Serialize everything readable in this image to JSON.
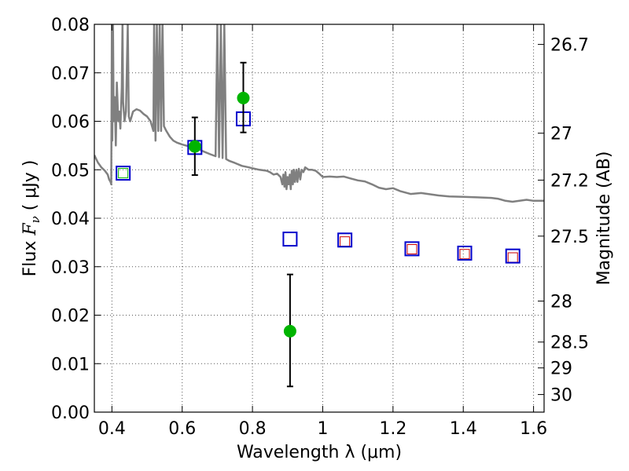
{
  "chart_data": {
    "type": "scatter",
    "title": "",
    "xlabel": "Wavelength  λ (μm)",
    "ylabel_prefix": "Flux ",
    "ylabel_symbol": "F",
    "ylabel_sub": "ν",
    "ylabel_suffix": "  ( μJy )",
    "y2label": "Magnitude (AB)",
    "xlim": [
      0.35,
      1.63
    ],
    "ylim": [
      0.0,
      0.08
    ],
    "grid": true,
    "x_ticks": [
      0.4,
      0.6,
      0.8,
      1.0,
      1.2,
      1.4,
      1.6
    ],
    "x_tick_labels": [
      "0.4",
      "0.6",
      "0.8",
      "1",
      "1.2",
      "1.4",
      "1.6"
    ],
    "y_ticks": [
      0.0,
      0.01,
      0.02,
      0.03,
      0.04,
      0.05,
      0.06,
      0.07,
      0.08
    ],
    "y_tick_labels": [
      "0.00",
      "0.01",
      "0.02",
      "0.03",
      "0.04",
      "0.05",
      "0.06",
      "0.07",
      "0.08"
    ],
    "y2_ticks": [
      26.7,
      27,
      27.2,
      27.5,
      28,
      28.5,
      29,
      30
    ],
    "y2_tick_labels": [
      "26.7",
      "27",
      "27.2",
      "27.5",
      "28",
      "28.5",
      "29",
      "30"
    ],
    "colors": {
      "spectrum": "#808080",
      "observed": "#00b400",
      "model_box": "#0000cc",
      "inner_green": "#00b400",
      "inner_red": "#cc0000"
    },
    "observed_points": [
      {
        "x": 0.636,
        "y": 0.0548,
        "err_lo": 0.0489,
        "err_hi": 0.0608
      },
      {
        "x": 0.774,
        "y": 0.0648,
        "err_lo": 0.0577,
        "err_hi": 0.0721
      },
      {
        "x": 0.907,
        "y": 0.0167,
        "err_lo": 0.0053,
        "err_hi": 0.0284
      }
    ],
    "model_points": [
      {
        "x": 0.432,
        "y": 0.0493
      },
      {
        "x": 0.636,
        "y": 0.0546
      },
      {
        "x": 0.774,
        "y": 0.0605
      },
      {
        "x": 0.907,
        "y": 0.0357
      },
      {
        "x": 1.063,
        "y": 0.0355
      },
      {
        "x": 1.254,
        "y": 0.0337
      },
      {
        "x": 1.404,
        "y": 0.0328
      },
      {
        "x": 1.541,
        "y": 0.0322
      }
    ],
    "inner_points": [
      {
        "x": 0.432,
        "y": 0.0493,
        "kind": "green"
      },
      {
        "x": 1.063,
        "y": 0.0352,
        "kind": "red"
      },
      {
        "x": 1.254,
        "y": 0.0336,
        "kind": "red"
      },
      {
        "x": 1.404,
        "y": 0.0326,
        "kind": "red"
      },
      {
        "x": 1.541,
        "y": 0.0319,
        "kind": "red"
      }
    ],
    "spectrum": [
      [
        0.35,
        0.053
      ],
      [
        0.36,
        0.0515
      ],
      [
        0.37,
        0.0505
      ],
      [
        0.38,
        0.0498
      ],
      [
        0.388,
        0.049
      ],
      [
        0.392,
        0.048
      ],
      [
        0.396,
        0.0475
      ],
      [
        0.398,
        0.047
      ],
      [
        0.4,
        0.08
      ],
      [
        0.401,
        0.056
      ],
      [
        0.403,
        0.08
      ],
      [
        0.405,
        0.06
      ],
      [
        0.408,
        0.065
      ],
      [
        0.411,
        0.055
      ],
      [
        0.414,
        0.068
      ],
      [
        0.418,
        0.06
      ],
      [
        0.421,
        0.062
      ],
      [
        0.424,
        0.0585
      ],
      [
        0.428,
        0.067
      ],
      [
        0.43,
        0.08
      ],
      [
        0.432,
        0.064
      ],
      [
        0.436,
        0.06
      ],
      [
        0.44,
        0.062
      ],
      [
        0.445,
        0.08
      ],
      [
        0.448,
        0.061
      ],
      [
        0.452,
        0.06
      ],
      [
        0.46,
        0.062
      ],
      [
        0.47,
        0.0625
      ],
      [
        0.48,
        0.0622
      ],
      [
        0.49,
        0.0615
      ],
      [
        0.5,
        0.061
      ],
      [
        0.51,
        0.06
      ],
      [
        0.518,
        0.058
      ],
      [
        0.52,
        0.08
      ],
      [
        0.524,
        0.056
      ],
      [
        0.528,
        0.08
      ],
      [
        0.532,
        0.058
      ],
      [
        0.536,
        0.08
      ],
      [
        0.54,
        0.058
      ],
      [
        0.544,
        0.08
      ],
      [
        0.548,
        0.059
      ],
      [
        0.555,
        0.058
      ],
      [
        0.565,
        0.0568
      ],
      [
        0.575,
        0.056
      ],
      [
        0.585,
        0.0556
      ],
      [
        0.6,
        0.0552
      ],
      [
        0.62,
        0.0548
      ],
      [
        0.64,
        0.0545
      ],
      [
        0.66,
        0.0538
      ],
      [
        0.68,
        0.0532
      ],
      [
        0.695,
        0.0528
      ],
      [
        0.7,
        0.08
      ],
      [
        0.705,
        0.0526
      ],
      [
        0.71,
        0.08
      ],
      [
        0.715,
        0.0524
      ],
      [
        0.72,
        0.08
      ],
      [
        0.725,
        0.0522
      ],
      [
        0.735,
        0.0518
      ],
      [
        0.75,
        0.0514
      ],
      [
        0.77,
        0.0508
      ],
      [
        0.79,
        0.0505
      ],
      [
        0.8,
        0.0503
      ],
      [
        0.82,
        0.05
      ],
      [
        0.84,
        0.0498
      ],
      [
        0.85,
        0.0495
      ],
      [
        0.86,
        0.049
      ],
      [
        0.87,
        0.0492
      ],
      [
        0.88,
        0.0485
      ],
      [
        0.885,
        0.047
      ],
      [
        0.888,
        0.049
      ],
      [
        0.891,
        0.0465
      ],
      [
        0.894,
        0.0495
      ],
      [
        0.897,
        0.046
      ],
      [
        0.9,
        0.0485
      ],
      [
        0.903,
        0.047
      ],
      [
        0.906,
        0.049
      ],
      [
        0.909,
        0.046
      ],
      [
        0.912,
        0.0498
      ],
      [
        0.915,
        0.047
      ],
      [
        0.918,
        0.05
      ],
      [
        0.921,
        0.0475
      ],
      [
        0.925,
        0.05
      ],
      [
        0.928,
        0.0475
      ],
      [
        0.932,
        0.0502
      ],
      [
        0.936,
        0.048
      ],
      [
        0.94,
        0.05
      ],
      [
        0.945,
        0.0495
      ],
      [
        0.95,
        0.0505
      ],
      [
        0.96,
        0.05
      ],
      [
        0.97,
        0.05
      ],
      [
        0.98,
        0.0498
      ],
      [
        0.99,
        0.0492
      ],
      [
        1.0,
        0.0485
      ],
      [
        1.02,
        0.0486
      ],
      [
        1.04,
        0.0485
      ],
      [
        1.06,
        0.0486
      ],
      [
        1.08,
        0.0482
      ],
      [
        1.1,
        0.0478
      ],
      [
        1.12,
        0.0476
      ],
      [
        1.14,
        0.047
      ],
      [
        1.16,
        0.0463
      ],
      [
        1.18,
        0.046
      ],
      [
        1.2,
        0.0462
      ],
      [
        1.22,
        0.0456
      ],
      [
        1.25,
        0.045
      ],
      [
        1.28,
        0.0452
      ],
      [
        1.3,
        0.045
      ],
      [
        1.33,
        0.0447
      ],
      [
        1.36,
        0.0445
      ],
      [
        1.4,
        0.0444
      ],
      [
        1.44,
        0.0443
      ],
      [
        1.48,
        0.0442
      ],
      [
        1.5,
        0.044
      ],
      [
        1.52,
        0.0436
      ],
      [
        1.54,
        0.0434
      ],
      [
        1.56,
        0.0436
      ],
      [
        1.58,
        0.0438
      ],
      [
        1.6,
        0.0436
      ],
      [
        1.63,
        0.0436
      ]
    ]
  }
}
